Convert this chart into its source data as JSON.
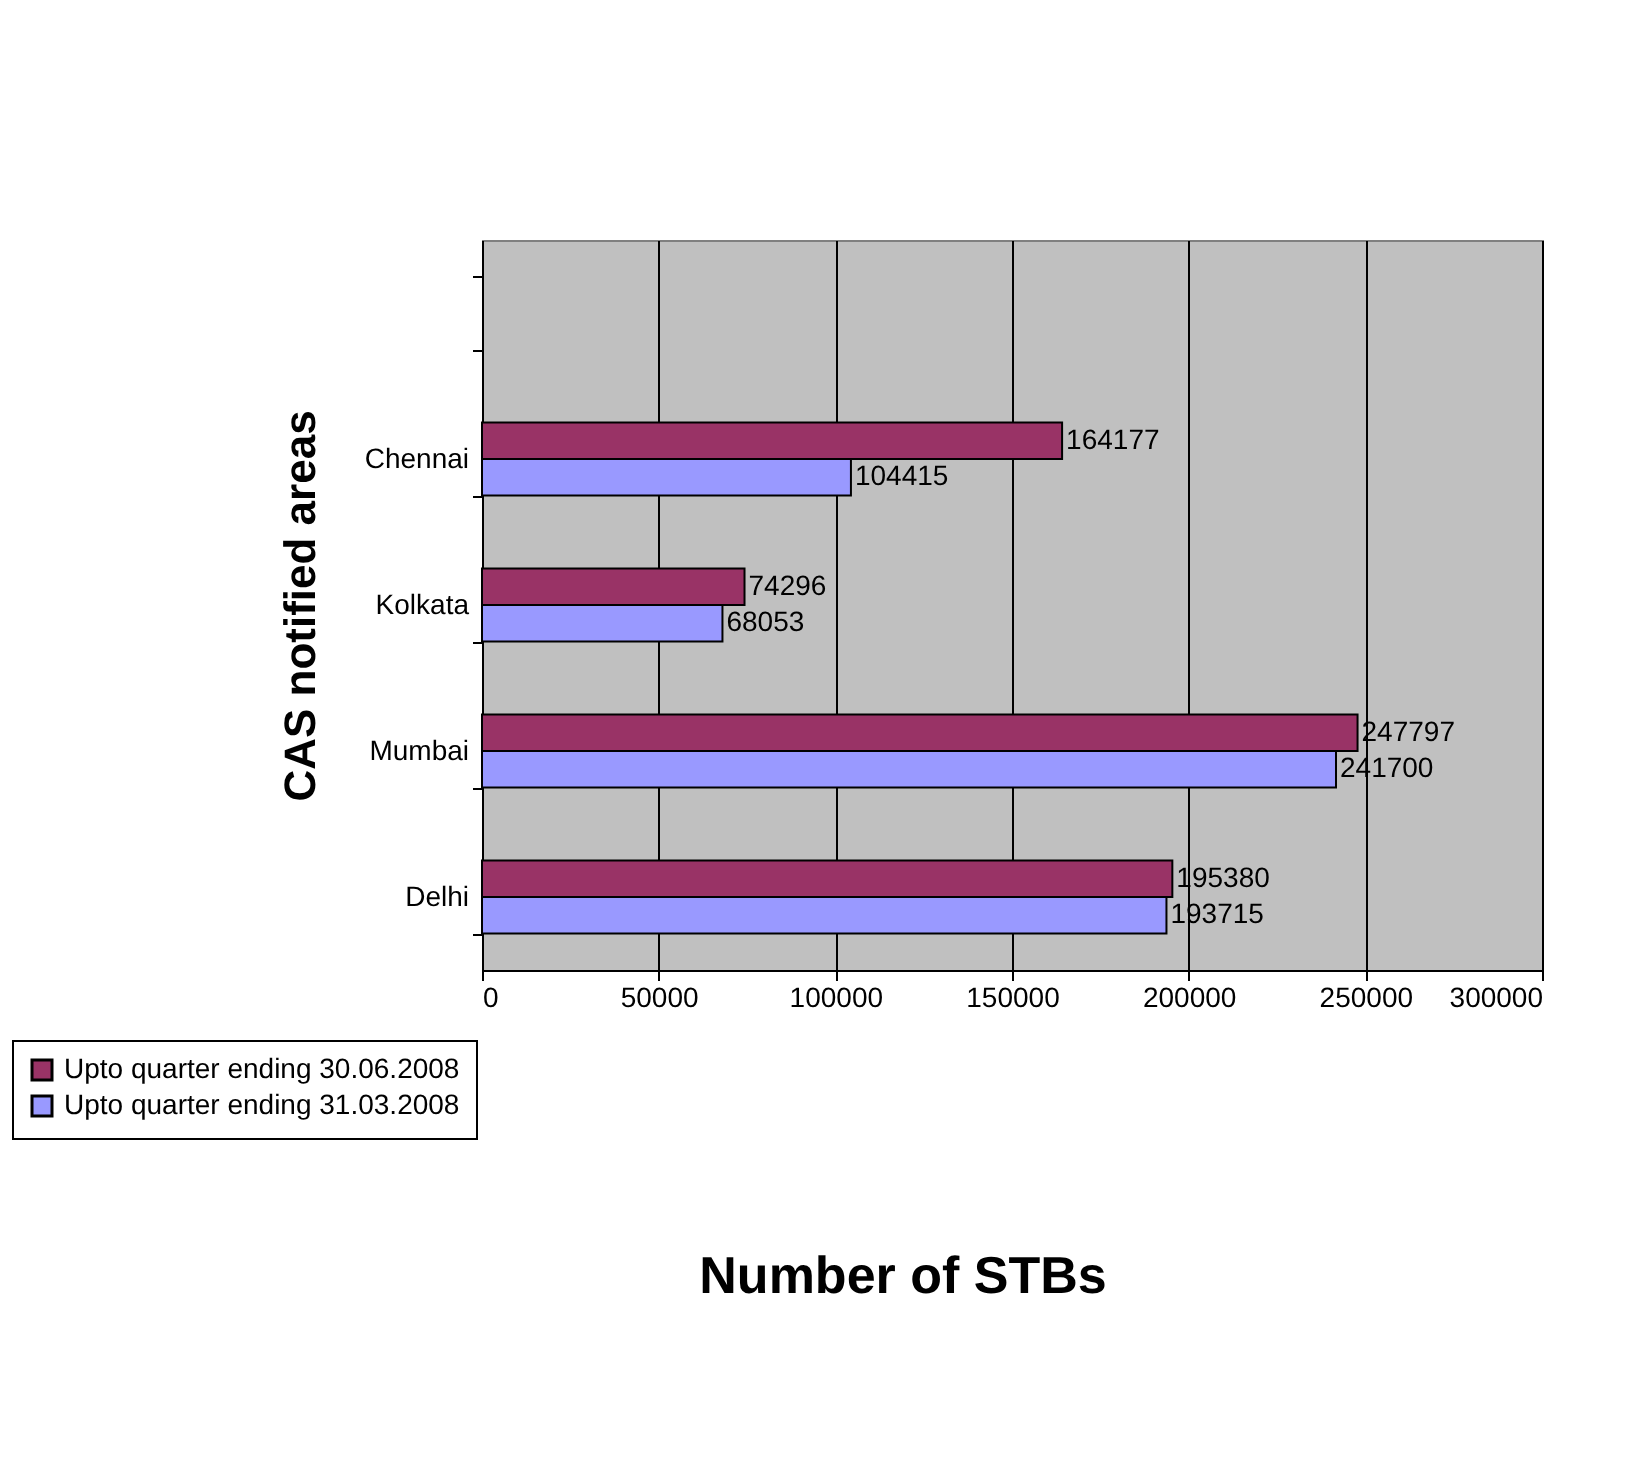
{
  "chart_data": {
    "type": "bar",
    "orientation": "horizontal",
    "xlabel": "Number of STBs",
    "ylabel": "CAS notified areas",
    "categories": [
      null,
      "Chennai",
      "Kolkata",
      "Mumbai",
      "Delhi"
    ],
    "series": [
      {
        "name": "Upto quarter ending 30.06.2008",
        "color": "#993366",
        "values": [
          null,
          164177,
          74296,
          247797,
          195380
        ]
      },
      {
        "name": "Upto quarter ending 31.03.2008",
        "color": "#9999ff",
        "values": [
          null,
          104415,
          68053,
          241700,
          193715
        ]
      }
    ],
    "xlim": [
      0,
      300000
    ],
    "xticks": [
      0,
      50000,
      100000,
      150000,
      200000,
      250000,
      300000
    ],
    "grid": "x",
    "data_labels": true,
    "legend": "bottom left"
  }
}
